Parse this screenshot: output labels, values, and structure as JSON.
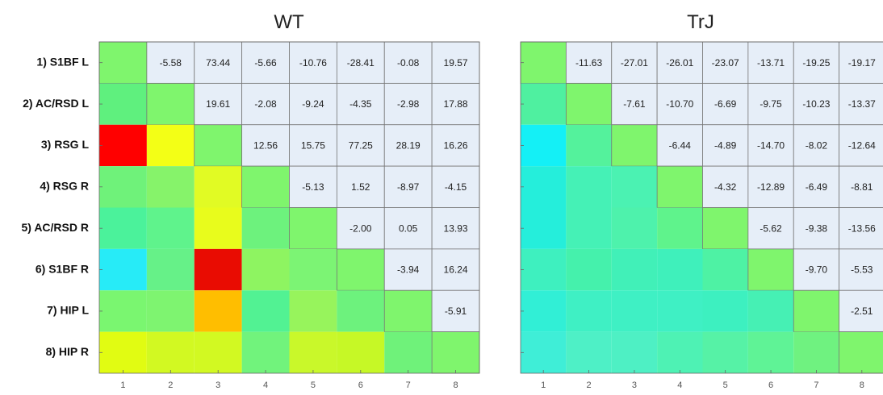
{
  "chart_data": [
    {
      "type": "heatmap",
      "title": "WT",
      "row_labels": [
        "1) S1BF L",
        "2) AC/RSD L",
        "3) RSG L",
        "4) RSG R",
        "5) AC/RSD R",
        "6) S1BF R",
        "7) HIP L",
        "8) HIP R"
      ],
      "col_labels": [
        "1",
        "2",
        "3",
        "4",
        "5",
        "6",
        "7",
        "8"
      ],
      "upper_values": [
        [
          null,
          "-5.58",
          "73.44",
          "-5.66",
          "-10.76",
          "-28.41",
          "-0.08",
          "19.57"
        ],
        [
          null,
          null,
          "19.61",
          "-2.08",
          "-9.24",
          "-4.35",
          "-2.98",
          "17.88"
        ],
        [
          null,
          null,
          null,
          "12.56",
          "15.75",
          "77.25",
          "28.19",
          "16.26"
        ],
        [
          null,
          null,
          null,
          null,
          "-5.13",
          "1.52",
          "-8.97",
          "-4.15"
        ],
        [
          null,
          null,
          null,
          null,
          null,
          "-2.00",
          "0.05",
          "13.93"
        ],
        [
          null,
          null,
          null,
          null,
          null,
          null,
          "-3.94",
          "16.24"
        ],
        [
          null,
          null,
          null,
          null,
          null,
          null,
          null,
          "-5.91"
        ],
        [
          null,
          null,
          null,
          null,
          null,
          null,
          null,
          null
        ]
      ],
      "lower_colors": [
        [
          "#7ff56d",
          null,
          null,
          null,
          null,
          null,
          null,
          null
        ],
        [
          "#5ff07e",
          "#7ff56d",
          null,
          null,
          null,
          null,
          null,
          null
        ],
        [
          "#ff0000",
          "#f3ff16",
          "#7ff56d",
          null,
          null,
          null,
          null,
          null
        ],
        [
          "#6ff27a",
          "#86f36a",
          "#e1fb24",
          "#7ff56d",
          null,
          null,
          null,
          null
        ],
        [
          "#4bf29b",
          "#5ff38c",
          "#e8fc1c",
          "#6df27d",
          "#7ff56d",
          null,
          null,
          null
        ],
        [
          "#27ebf7",
          "#66f188",
          "#e90c02",
          "#8ef461",
          "#7cf474",
          "#7ff56d",
          null,
          null
        ],
        [
          "#7af670",
          "#7ef470",
          "#ffbe00",
          "#52f293",
          "#97f45c",
          "#6df27d",
          "#7ff56d",
          null
        ],
        [
          "#e1fc12",
          "#d2f922",
          "#d2f922",
          "#71f37c",
          "#c9f82a",
          "#c6f826",
          "#6ff27a",
          "#7ff56d"
        ]
      ],
      "upper_color": "#e6eef8"
    },
    {
      "type": "heatmap",
      "title": "TrJ",
      "row_labels": [],
      "col_labels": [
        "1",
        "2",
        "3",
        "4",
        "5",
        "6",
        "7",
        "8"
      ],
      "upper_values": [
        [
          null,
          "-11.63",
          "-27.01",
          "-26.01",
          "-23.07",
          "-13.71",
          "-19.25",
          "-19.17"
        ],
        [
          null,
          null,
          "-7.61",
          "-10.70",
          "-6.69",
          "-9.75",
          "-10.23",
          "-13.37"
        ],
        [
          null,
          null,
          null,
          "-6.44",
          "-4.89",
          "-14.70",
          "-8.02",
          "-12.64"
        ],
        [
          null,
          null,
          null,
          null,
          "-4.32",
          "-12.89",
          "-6.49",
          "-8.81"
        ],
        [
          null,
          null,
          null,
          null,
          null,
          "-5.62",
          "-9.38",
          "-13.56"
        ],
        [
          null,
          null,
          null,
          null,
          null,
          null,
          "-9.70",
          "-5.53"
        ],
        [
          null,
          null,
          null,
          null,
          null,
          null,
          null,
          "-2.51"
        ],
        [
          null,
          null,
          null,
          null,
          null,
          null,
          null,
          null
        ]
      ],
      "lower_colors": [
        [
          "#7ff56d",
          null,
          null,
          null,
          null,
          null,
          null,
          null
        ],
        [
          "#4ff0a0",
          "#7ff56d",
          null,
          null,
          null,
          null,
          null,
          null
        ],
        [
          "#14f0f6",
          "#54f29c",
          "#7ff56d",
          null,
          null,
          null,
          null,
          null
        ],
        [
          "#25eedb",
          "#45f1b6",
          "#4bf2b2",
          "#7ff56d",
          null,
          null,
          null,
          null
        ],
        [
          "#25eedb",
          "#45f1b6",
          "#4ef2ac",
          "#5ff38c",
          "#7ff56d",
          null,
          null,
          null
        ],
        [
          "#3ef0bf",
          "#45f1ac",
          "#41f0b8",
          "#3ff0bb",
          "#4ef2a4",
          "#7ff56d",
          null,
          null
        ],
        [
          "#31efd6",
          "#3ff0c4",
          "#3ff0c4",
          "#3ff0c4",
          "#3df0c0",
          "#46f0b4",
          "#7ff56d",
          null
        ],
        [
          "#3feed7",
          "#4ef0c6",
          "#4ef0c4",
          "#4ef2b4",
          "#56f2a6",
          "#5ff396",
          "#6ff280",
          "#7ff56d"
        ]
      ],
      "upper_color": "#e6eef8"
    }
  ]
}
